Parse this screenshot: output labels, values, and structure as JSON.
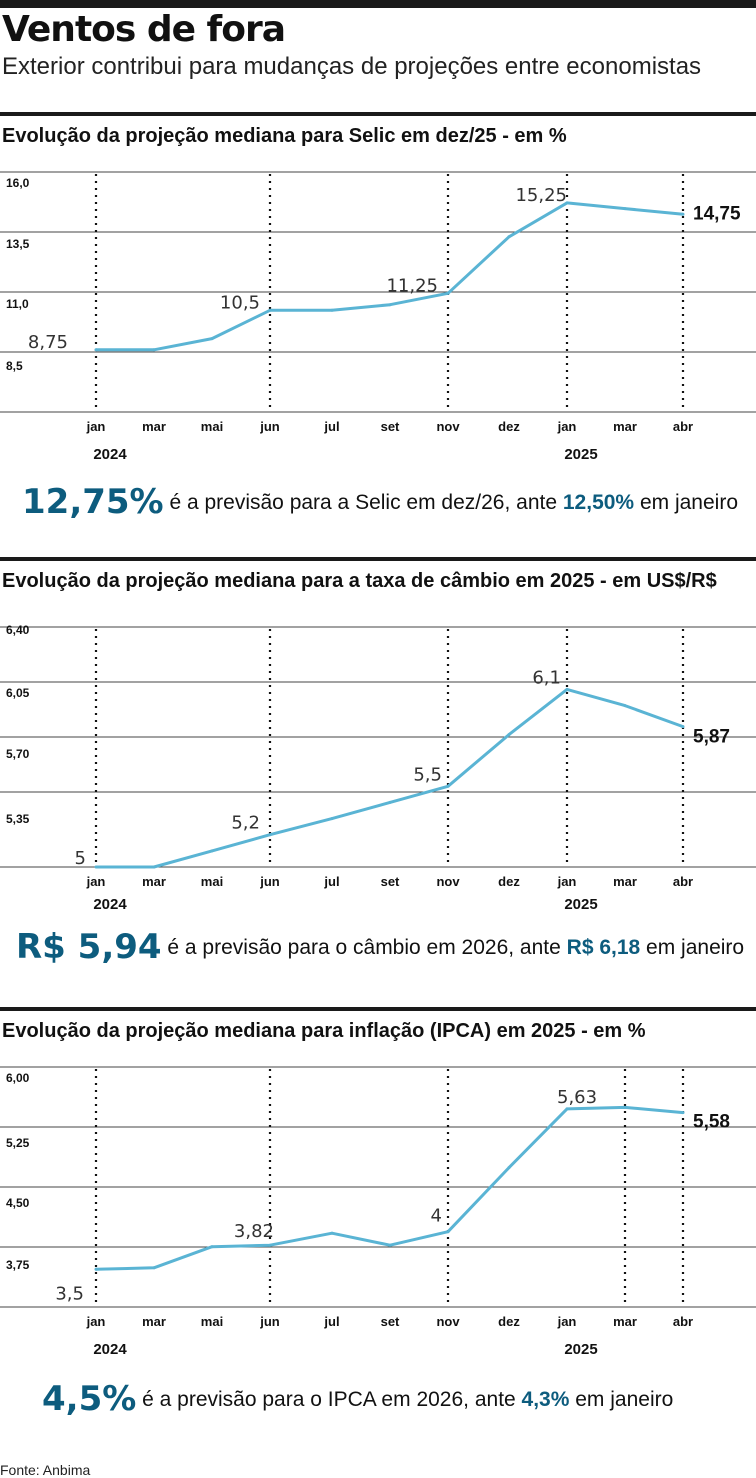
{
  "header": {
    "title": "Ventos de fora",
    "subtitle": "Exterior contribui para mudanças de projeções entre economistas"
  },
  "colors": {
    "line": "#5ab4d4",
    "accent": "#0d5c7e",
    "rule": "#1a1a1a",
    "grid": "#444444"
  },
  "sections": [
    {
      "title": "Evolução da projeção mediana para Selic em dez/25 - em %",
      "footnote": {
        "big": "12,75%",
        "text1": " é a previsão para a Selic em dez/26, ante ",
        "mid": "12,50%",
        "text2": " em janeiro"
      }
    },
    {
      "title": "Evolução da projeção mediana para a taxa de câmbio em 2025 - em US$/R$",
      "footnote": {
        "big": "R$ 5,94",
        "text1": " é a previsão para o câmbio em 2026, ante ",
        "mid": "R$ 6,18",
        "text2": " em janeiro"
      }
    },
    {
      "title": "Evolução da projeção mediana para inflação (IPCA) em 2025 - em %",
      "footnote": {
        "big": "4,5%",
        "text1": " é a previsão para o IPCA em 2026, ante ",
        "mid": "4,3%",
        "text2": " em janeiro"
      }
    }
  ],
  "source": "Fonte: Anbima",
  "chart_data": [
    {
      "type": "line",
      "title": "Evolução da projeção mediana para Selic em dez/25 - em %",
      "x": [
        "jan",
        "mar",
        "mai",
        "jun",
        "jul",
        "set",
        "nov",
        "dez",
        "jan",
        "mar",
        "abr"
      ],
      "year_labels": [
        {
          "index": 0,
          "label": "2024"
        },
        {
          "index": 8,
          "label": "2025"
        }
      ],
      "dotted_ticks": [
        0,
        3,
        6,
        8,
        10
      ],
      "ylim": [
        6.0,
        16.0
      ],
      "yticks": [
        16.0,
        13.5,
        11.0,
        8.5
      ],
      "ytick_labels": [
        "16,0",
        "13,5",
        "11,0",
        "8,5"
      ],
      "grid": true,
      "series": [
        {
          "values": [
            8.75,
            8.75,
            9.25,
            10.5,
            10.5,
            10.75,
            11.25,
            13.75,
            15.25,
            15.0,
            14.75
          ]
        }
      ],
      "data_labels": [
        {
          "index": 0,
          "label": "8,75"
        },
        {
          "index": 3,
          "label": "10,5"
        },
        {
          "index": 6,
          "label": "11,25"
        },
        {
          "index": 8,
          "label": "15,25"
        },
        {
          "index": 10,
          "label": "14,75"
        }
      ]
    },
    {
      "type": "line",
      "title": "Evolução da projeção mediana para a taxa de câmbio em 2025 - em US$/R$",
      "x": [
        "jan",
        "mar",
        "mai",
        "jun",
        "jul",
        "set",
        "nov",
        "dez",
        "jan",
        "mar",
        "abr"
      ],
      "year_labels": [
        {
          "index": 0,
          "label": "2024"
        },
        {
          "index": 8,
          "label": "2025"
        }
      ],
      "dotted_ticks": [
        0,
        3,
        6,
        8,
        10
      ],
      "ylim": [
        5.0,
        6.4
      ],
      "yticks": [
        6.4,
        6.05,
        5.7,
        5.35
      ],
      "ytick_labels": [
        "6,40",
        "6,05",
        "5,70",
        "5,35"
      ],
      "grid": true,
      "series": [
        {
          "values": [
            5.0,
            5.0,
            5.1,
            5.2,
            5.3,
            5.4,
            5.5,
            5.82,
            6.1,
            6.0,
            5.87
          ]
        }
      ],
      "data_labels": [
        {
          "index": 0,
          "label": "5"
        },
        {
          "index": 3,
          "label": "5,2"
        },
        {
          "index": 6,
          "label": "5,5"
        },
        {
          "index": 8,
          "label": "6,1"
        },
        {
          "index": 10,
          "label": "5,87"
        }
      ]
    },
    {
      "type": "line",
      "title": "Evolução da projeção mediana para inflação (IPCA) em 2025 - em %",
      "x": [
        "jan",
        "mar",
        "mai",
        "jun",
        "jul",
        "set",
        "nov",
        "dez",
        "jan",
        "mar",
        "abr"
      ],
      "year_labels": [
        {
          "index": 0,
          "label": "2024"
        },
        {
          "index": 8,
          "label": "2025"
        }
      ],
      "dotted_ticks": [
        0,
        3,
        6,
        9,
        10
      ],
      "ylim": [
        3.0,
        6.0
      ],
      "yticks": [
        6.0,
        5.25,
        4.5,
        3.75
      ],
      "ytick_labels": [
        "6,00",
        "5,25",
        "4,50",
        "3,75"
      ],
      "grid": true,
      "series": [
        {
          "values": [
            3.5,
            3.52,
            3.8,
            3.82,
            3.98,
            3.82,
            4.0,
            4.85,
            5.63,
            5.65,
            5.58
          ]
        }
      ],
      "data_labels": [
        {
          "index": 0,
          "label": "3,5"
        },
        {
          "index": 3,
          "label": "3,82"
        },
        {
          "index": 6,
          "label": "4"
        },
        {
          "index": 8,
          "label": "5,63"
        },
        {
          "index": 10,
          "label": "5,58"
        }
      ]
    }
  ]
}
